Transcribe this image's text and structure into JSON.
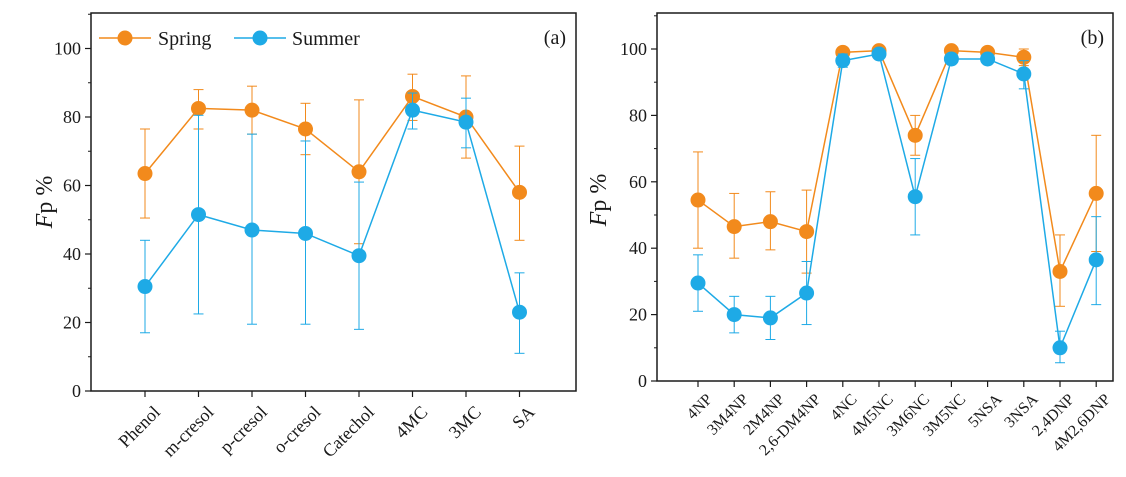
{
  "colors": {
    "spring": "#F28A1C",
    "summer": "#1EAAE6",
    "axis": "#1a1a1a"
  },
  "chart_data": [
    {
      "type": "line",
      "panel_label": "(a)",
      "ylabel_italic": "F",
      "ylabel_rest": "p %",
      "ylim": [
        0,
        110
      ],
      "yticks": [
        0,
        20,
        40,
        60,
        80,
        100
      ],
      "grid": false,
      "legend_position": "top-left",
      "categories": [
        "Phenol",
        "m-cresol",
        "p-cresol",
        "o-cresol",
        "Catechol",
        "4MC",
        "3MC",
        "SA"
      ],
      "series": [
        {
          "name": "Spring",
          "values": [
            63.5,
            82.5,
            82,
            76.5,
            64,
            86,
            80,
            58
          ],
          "err_upper": [
            76.5,
            88,
            89,
            84,
            85,
            92.5,
            92,
            71.5
          ],
          "err_lower": [
            50.5,
            76.5,
            75,
            69,
            43,
            79,
            68,
            44
          ]
        },
        {
          "name": "Summer",
          "values": [
            30.5,
            51.5,
            47,
            46,
            39.5,
            82,
            78.5,
            23
          ],
          "err_upper": [
            44,
            80.5,
            75,
            73,
            61,
            87,
            85.5,
            34.5
          ],
          "err_lower": [
            17,
            22.5,
            19.5,
            19.5,
            18,
            76.5,
            71,
            11
          ]
        }
      ]
    },
    {
      "type": "line",
      "panel_label": "(b)",
      "ylabel_italic": "F",
      "ylabel_rest": "p %",
      "ylim": [
        0,
        110
      ],
      "yticks": [
        0,
        20,
        40,
        60,
        80,
        100
      ],
      "grid": false,
      "categories": [
        "4NP",
        "3M4NP",
        "2M4NP",
        "2,6-DM4NP",
        "4NC",
        "4M5NC",
        "3M6NC",
        "3M5NC",
        "5NSA",
        "3NSA",
        "2,4DNP",
        "4M2,6DNP"
      ],
      "series": [
        {
          "name": "Spring",
          "values": [
            54.5,
            46.5,
            48,
            45,
            99,
            99.5,
            74,
            99.5,
            99,
            97.5,
            33,
            56.5
          ],
          "err_upper": [
            69,
            56.5,
            57,
            57.5,
            100,
            100.5,
            80,
            100,
            100,
            100,
            44,
            74
          ],
          "err_lower": [
            40,
            37,
            39.5,
            32.5,
            98,
            98.5,
            68,
            99,
            98,
            95,
            22.5,
            39
          ]
        },
        {
          "name": "Summer",
          "values": [
            29.5,
            20,
            19,
            26.5,
            96.5,
            98.5,
            55.5,
            97,
            97,
            92.5,
            10,
            36.5
          ],
          "err_upper": [
            38,
            25.5,
            25.5,
            36,
            98.5,
            100,
            67,
            98.5,
            98.5,
            96.5,
            15,
            49.5
          ],
          "err_lower": [
            21,
            14.5,
            12.5,
            17,
            94.5,
            97,
            44,
            95.5,
            95.5,
            88,
            5.5,
            23
          ]
        }
      ]
    }
  ]
}
